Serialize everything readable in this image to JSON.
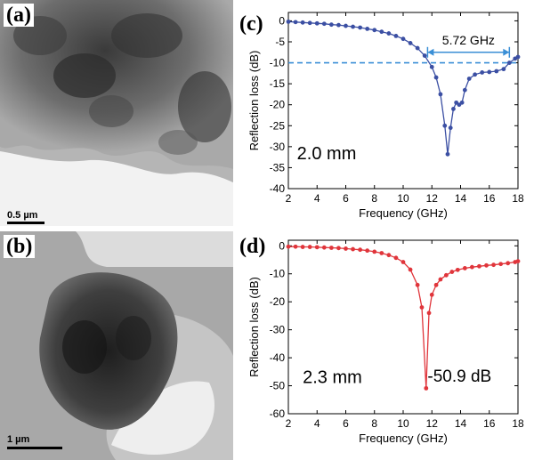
{
  "panels": {
    "a": {
      "letter": "(a)",
      "scalebar": "0.5 µm"
    },
    "b": {
      "letter": "(b)",
      "scalebar": "1 µm"
    },
    "c": {
      "letter": "(c)"
    },
    "d": {
      "letter": "(d)"
    }
  },
  "colors": {
    "c_series": "#3b4fa3",
    "d_series": "#e0353b",
    "c_ref_line": "#3a8fd6",
    "c_annotation": "#3a8fd6"
  },
  "chart_data": [
    {
      "type": "line",
      "panel": "c",
      "xlabel": "Frequency (GHz)",
      "ylabel": "Reflection loss (dB)",
      "xlim": [
        2,
        18
      ],
      "ylim": [
        -40,
        2
      ],
      "xticks": [
        2,
        4,
        6,
        8,
        10,
        12,
        14,
        16,
        18
      ],
      "yticks": [
        0,
        -5,
        -10,
        -15,
        -20,
        -25,
        -30,
        -35,
        -40
      ],
      "annotation_thickness": "2.0 mm",
      "bandwidth_label": "5.72 GHz",
      "bandwidth_range": [
        11.7,
        17.4
      ],
      "reference_line_y": -10,
      "series": [
        {
          "x": [
            2,
            2.5,
            3,
            3.5,
            4,
            4.5,
            5,
            5.5,
            6,
            6.5,
            7,
            7.5,
            8,
            8.5,
            9,
            9.5,
            10,
            10.5,
            11,
            11.5,
            12,
            12.3,
            12.6,
            12.9,
            13.1,
            13.3,
            13.5,
            13.7,
            13.9,
            14.1,
            14.3,
            14.6,
            15,
            15.5,
            16,
            16.5,
            17,
            17.4,
            17.8,
            18
          ],
          "y": [
            -0.2,
            -0.3,
            -0.4,
            -0.5,
            -0.6,
            -0.7,
            -0.9,
            -1.0,
            -1.2,
            -1.4,
            -1.6,
            -1.9,
            -2.2,
            -2.6,
            -3.0,
            -3.6,
            -4.3,
            -5.3,
            -6.5,
            -8.3,
            -11.0,
            -13.5,
            -17.5,
            -25.0,
            -31.8,
            -25.5,
            -21.0,
            -19.5,
            -20.0,
            -19.5,
            -16.5,
            -13.8,
            -12.8,
            -12.3,
            -12.2,
            -12.0,
            -11.5,
            -10.0,
            -9.0,
            -8.6
          ]
        }
      ]
    },
    {
      "type": "line",
      "panel": "d",
      "xlabel": "Frequency (GHz)",
      "ylabel": "Reflection loss (dB)",
      "xlim": [
        2,
        18
      ],
      "ylim": [
        -60,
        2
      ],
      "xticks": [
        2,
        4,
        6,
        8,
        10,
        12,
        14,
        16,
        18
      ],
      "yticks": [
        0,
        -10,
        -20,
        -30,
        -40,
        -50,
        -60
      ],
      "annotation_thickness": "2.3 mm",
      "annotation_peak": "-50.9 dB",
      "series": [
        {
          "x": [
            2,
            2.5,
            3,
            3.5,
            4,
            4.5,
            5,
            5.5,
            6,
            6.5,
            7,
            7.5,
            8,
            8.5,
            9,
            9.5,
            10,
            10.5,
            11,
            11.3,
            11.6,
            11.8,
            12,
            12.3,
            12.6,
            13,
            13.4,
            13.8,
            14.3,
            14.8,
            15.3,
            15.8,
            16.3,
            16.8,
            17.3,
            17.8,
            18
          ],
          "y": [
            -0.3,
            -0.3,
            -0.4,
            -0.4,
            -0.5,
            -0.6,
            -0.7,
            -0.8,
            -1.0,
            -1.2,
            -1.4,
            -1.7,
            -2.1,
            -2.6,
            -3.3,
            -4.3,
            -5.8,
            -8.5,
            -14.0,
            -22.0,
            -50.9,
            -24.0,
            -17.5,
            -14.0,
            -12.0,
            -10.5,
            -9.3,
            -8.6,
            -8.0,
            -7.6,
            -7.3,
            -7.0,
            -6.8,
            -6.5,
            -6.2,
            -5.8,
            -5.5
          ]
        }
      ]
    }
  ]
}
